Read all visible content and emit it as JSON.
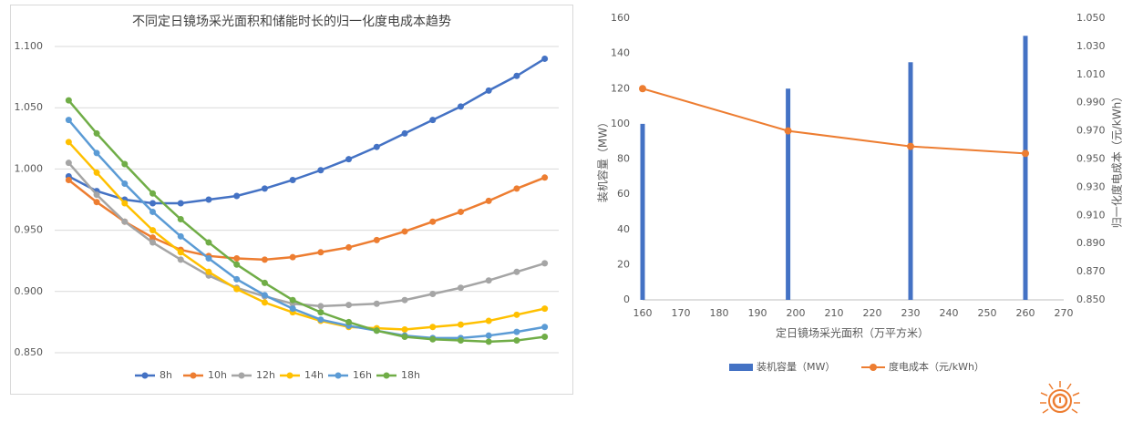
{
  "chart_data": [
    {
      "type": "line",
      "title": "不同定日镜场采光面积和储能时长的归一化度电成本趋势",
      "categories": [
        null,
        null,
        null,
        null,
        null,
        null,
        null,
        null,
        null,
        null,
        null,
        null,
        null,
        null,
        null,
        null,
        null,
        null
      ],
      "series": [
        {
          "name": "8h",
          "color": "#4472c4",
          "values": [
            0.994,
            0.982,
            0.975,
            0.972,
            0.972,
            0.975,
            0.978,
            0.984,
            0.991,
            0.999,
            1.008,
            1.018,
            1.029,
            1.04,
            1.051,
            1.064,
            1.076,
            1.09
          ]
        },
        {
          "name": "10h",
          "color": "#ed7d31",
          "values": [
            0.991,
            0.973,
            0.957,
            0.944,
            0.934,
            0.929,
            0.927,
            0.926,
            0.928,
            0.932,
            0.936,
            0.942,
            0.949,
            0.957,
            0.965,
            0.974,
            0.984,
            0.993
          ]
        },
        {
          "name": "12h",
          "color": "#a5a5a5",
          "values": [
            1.005,
            0.979,
            0.957,
            0.94,
            0.926,
            0.913,
            0.903,
            0.896,
            0.89,
            0.888,
            0.889,
            0.89,
            0.893,
            0.898,
            0.903,
            0.909,
            0.916,
            0.923
          ]
        },
        {
          "name": "14h",
          "color": "#ffc000",
          "values": [
            1.022,
            0.997,
            0.972,
            0.95,
            0.932,
            0.916,
            0.902,
            0.891,
            0.883,
            0.876,
            0.871,
            0.87,
            0.869,
            0.871,
            0.873,
            0.876,
            0.881,
            0.886
          ]
        },
        {
          "name": "16h",
          "color": "#5b9bd5",
          "values": [
            1.04,
            1.013,
            0.988,
            0.965,
            0.945,
            0.927,
            0.91,
            0.897,
            0.886,
            0.877,
            0.872,
            0.868,
            0.864,
            0.862,
            0.862,
            0.864,
            0.867,
            0.871
          ]
        },
        {
          "name": "18h",
          "color": "#70ad47",
          "values": [
            1.056,
            1.029,
            1.004,
            0.98,
            0.959,
            0.94,
            0.922,
            0.907,
            0.893,
            0.883,
            0.875,
            0.868,
            0.863,
            0.861,
            0.86,
            0.859,
            0.86,
            0.863
          ]
        }
      ],
      "ylim": [
        0.85,
        1.1
      ],
      "yticks": [
        {
          "value": 0.85,
          "label": "0.850"
        },
        {
          "value": 0.9,
          "label": "0.900"
        },
        {
          "value": 0.95,
          "label": "0.950"
        },
        {
          "value": 1.0,
          "label": "1.000"
        },
        {
          "value": 1.05,
          "label": "1.050"
        },
        {
          "value": 1.1,
          "label": "1.100"
        }
      ],
      "grid": true,
      "legend": "bottom"
    },
    {
      "type": "combo",
      "x": [
        160,
        198,
        230,
        260
      ],
      "xlabel": "定日镜场采光面积（万平方米）",
      "ylabel": "装机容量（MW）",
      "y2label": "归一化度电成本（元/kWh）",
      "series": [
        {
          "name": "装机容量（MW）",
          "type": "bar",
          "color": "#4472c4",
          "values": [
            100,
            120,
            135,
            150
          ]
        },
        {
          "name": "度电成本（元/kWh）",
          "type": "line",
          "axis": "y2",
          "color": "#ed7d31",
          "values": [
            1.0,
            0.97,
            0.959,
            0.954
          ]
        }
      ],
      "xlim": [
        160,
        270
      ],
      "xticks": [
        160,
        170,
        180,
        190,
        200,
        210,
        220,
        230,
        240,
        250,
        260,
        270
      ],
      "ylim": [
        0,
        160
      ],
      "yticks": [
        0,
        20,
        40,
        60,
        80,
        100,
        120,
        140,
        160
      ],
      "y2lim": [
        0.85,
        1.05
      ],
      "y2ticks": [
        {
          "value": 0.85,
          "label": "0.850"
        },
        {
          "value": 0.87,
          "label": "0.870"
        },
        {
          "value": 0.89,
          "label": "0.890"
        },
        {
          "value": 0.91,
          "label": "0.910"
        },
        {
          "value": 0.93,
          "label": "0.930"
        },
        {
          "value": 0.95,
          "label": "0.950"
        },
        {
          "value": 0.97,
          "label": "0.970"
        },
        {
          "value": 0.99,
          "label": "0.990"
        },
        {
          "value": 1.01,
          "label": "1.010"
        },
        {
          "value": 1.03,
          "label": "1.030"
        },
        {
          "value": 1.05,
          "label": "1.050"
        }
      ],
      "grid": false,
      "legend": "bottom"
    }
  ]
}
